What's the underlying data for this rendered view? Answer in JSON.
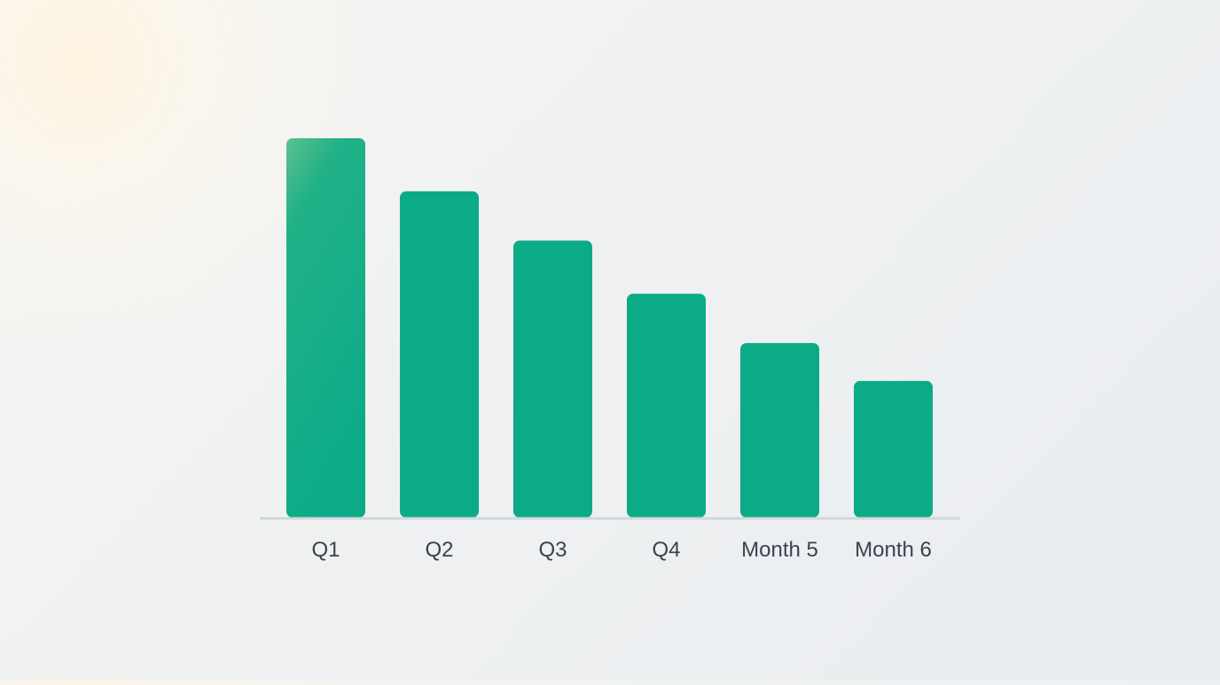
{
  "chart_data": {
    "type": "bar",
    "categories": [
      "Q1",
      "Q2",
      "Q3",
      "Q4",
      "Month 5",
      "Month 6"
    ],
    "values": [
      100,
      86,
      73,
      59,
      46,
      36
    ],
    "title": "",
    "xlabel": "",
    "ylabel": "",
    "ylim": [
      0,
      100
    ],
    "grid": false,
    "legend": "none"
  },
  "colors": {
    "bar": "#0bab88",
    "bar_highlight": "#5cc08e",
    "axis": "#d3d6da",
    "label": "#3b4150"
  }
}
